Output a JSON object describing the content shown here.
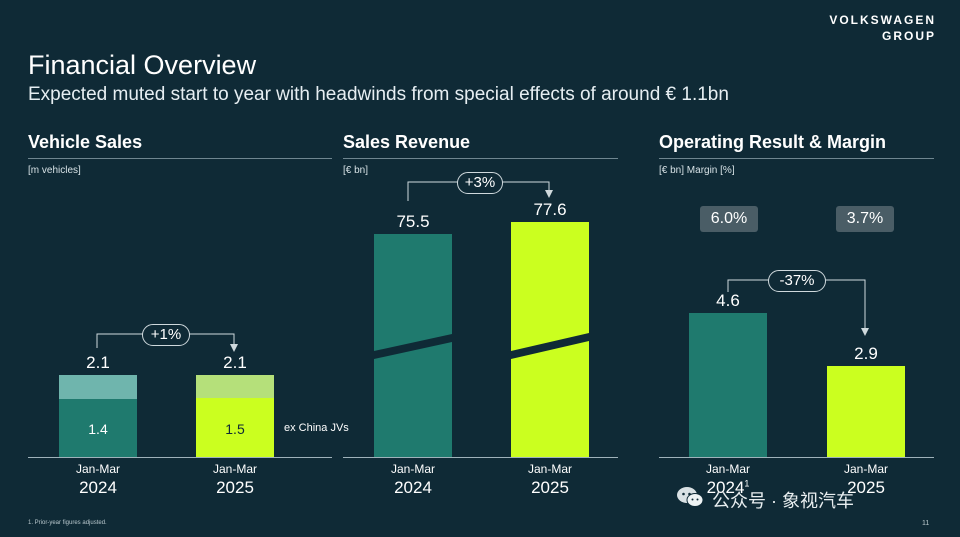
{
  "brand": {
    "line1": "VOLKSWAGEN",
    "line2": "GROUP"
  },
  "title": "Financial Overview",
  "subtitle": "Expected muted start to year with headwinds from special effects of around € 1.1bn",
  "colors": {
    "background": "#0f2a36",
    "teal": "#1f7a6e",
    "teal_light": "#6fb5ad",
    "lime": "#cbff1f",
    "lime_light": "#b5e07a",
    "margin_box": "#4a5d66"
  },
  "panels": {
    "vehicle_sales": {
      "title": "Vehicle Sales",
      "unit": "[m vehicles]",
      "change": "+1%",
      "bars": [
        {
          "period": "Jan-Mar",
          "year": "2024",
          "total": "2.1",
          "ex_china": "1.4"
        },
        {
          "period": "Jan-Mar",
          "year": "2025",
          "total": "2.1",
          "ex_china": "1.5"
        }
      ],
      "annotation": "ex China JVs"
    },
    "sales_revenue": {
      "title": "Sales Revenue",
      "unit": "[€ bn]",
      "change": "+3%",
      "bars": [
        {
          "period": "Jan-Mar",
          "year": "2024",
          "value": "75.5"
        },
        {
          "period": "Jan-Mar",
          "year": "2025",
          "value": "77.6"
        }
      ]
    },
    "operating_result": {
      "title": "Operating Result & Margin",
      "unit": "[€ bn] Margin [%]",
      "change": "-37%",
      "margins": [
        "6.0%",
        "3.7%"
      ],
      "bars": [
        {
          "period": "Jan-Mar",
          "year": "2024",
          "footnote_mark": "1",
          "value": "4.6"
        },
        {
          "period": "Jan-Mar",
          "year": "2025",
          "value": "2.9"
        }
      ]
    }
  },
  "footnote": "1. Prior-year figures adjusted.",
  "page_number": "11",
  "watermark": "公众号 · 象视汽车"
}
